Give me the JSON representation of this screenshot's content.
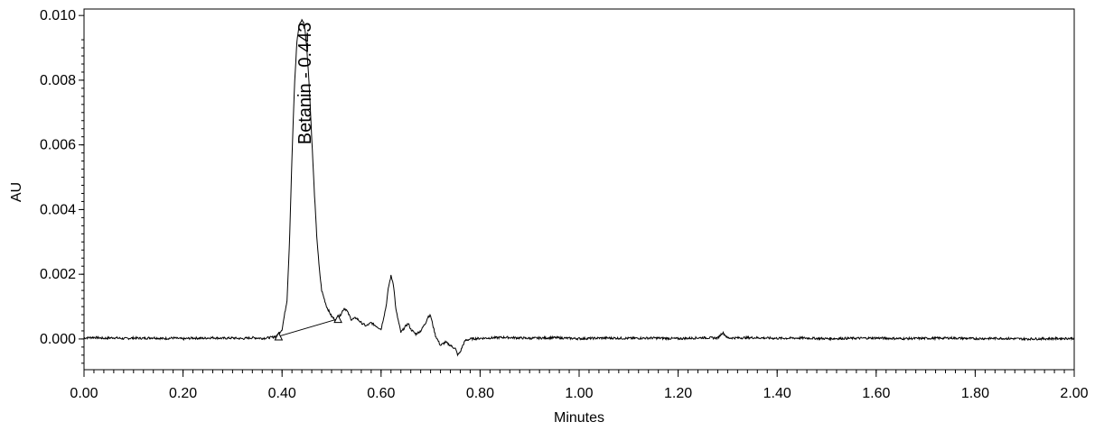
{
  "chart_data": {
    "type": "line",
    "xlabel": "Minutes",
    "ylabel": "AU",
    "xlim": [
      0.0,
      2.0
    ],
    "ylim": [
      -0.00095,
      0.0102
    ],
    "x_ticks": [
      "0.00",
      "0.20",
      "0.40",
      "0.60",
      "0.80",
      "1.00",
      "1.20",
      "1.40",
      "1.60",
      "1.80",
      "2.00"
    ],
    "y_ticks": [
      "0.000",
      "0.002",
      "0.004",
      "0.006",
      "0.008",
      "0.010"
    ],
    "grid": false,
    "line_color": "#000000",
    "series": [
      {
        "x": [
          0.0,
          0.02,
          0.04,
          0.06,
          0.08,
          0.1,
          0.12,
          0.14,
          0.16,
          0.18,
          0.2,
          0.22,
          0.24,
          0.26,
          0.28,
          0.3,
          0.32,
          0.34,
          0.36,
          0.38,
          0.39,
          0.4,
          0.41,
          0.415,
          0.42,
          0.425,
          0.43,
          0.435,
          0.44,
          0.443,
          0.446,
          0.45,
          0.455,
          0.46,
          0.465,
          0.47,
          0.475,
          0.48,
          0.49,
          0.5,
          0.51,
          0.52,
          0.525,
          0.53,
          0.54,
          0.55,
          0.56,
          0.57,
          0.58,
          0.59,
          0.6,
          0.61,
          0.615,
          0.62,
          0.625,
          0.63,
          0.64,
          0.65,
          0.655,
          0.66,
          0.67,
          0.68,
          0.69,
          0.695,
          0.7,
          0.705,
          0.71,
          0.72,
          0.73,
          0.74,
          0.75,
          0.755,
          0.76,
          0.765,
          0.77,
          0.78,
          0.8,
          0.85,
          0.9,
          0.95,
          1.0,
          1.05,
          1.1,
          1.15,
          1.2,
          1.25,
          1.28,
          1.29,
          1.3,
          1.35,
          1.4,
          1.45,
          1.5,
          1.55,
          1.6,
          1.65,
          1.7,
          1.75,
          1.8,
          1.85,
          1.9,
          1.95,
          2.0
        ],
        "y": [
          3e-05,
          5e-05,
          2e-05,
          4e-05,
          1e-05,
          3e-05,
          2e-05,
          4e-05,
          1e-05,
          3e-05,
          0.0,
          3e-05,
          2e-05,
          4e-05,
          2e-05,
          3e-05,
          1e-05,
          4e-05,
          2e-05,
          5e-05,
          0.0001,
          0.0003,
          0.0012,
          0.003,
          0.0056,
          0.0078,
          0.0092,
          0.00975,
          0.00985,
          0.0098,
          0.0096,
          0.009,
          0.0078,
          0.0062,
          0.0046,
          0.0032,
          0.0022,
          0.0015,
          0.001,
          0.0007,
          0.00055,
          0.0008,
          0.00095,
          0.0009,
          0.0006,
          0.00065,
          0.0005,
          0.0004,
          0.0005,
          0.0004,
          0.0003,
          0.001,
          0.0016,
          0.00195,
          0.0017,
          0.0009,
          0.0002,
          0.0004,
          0.00048,
          0.0003,
          0.00015,
          0.00025,
          0.0005,
          0.0007,
          0.00072,
          0.0004,
          0.0001,
          -0.0002,
          -0.0001,
          -0.0002,
          -0.0003,
          -0.0005,
          -0.0004,
          -0.0002,
          -5e-05,
          0.0,
          2e-05,
          5e-05,
          2e-05,
          4e-05,
          1e-05,
          3e-05,
          2e-05,
          3e-05,
          1e-05,
          4e-05,
          3e-05,
          0.0002,
          3e-05,
          4e-05,
          2e-05,
          3e-05,
          1e-05,
          2e-05,
          3e-05,
          1e-05,
          2e-05,
          3e-05,
          1e-05,
          2e-05,
          0.0,
          1e-05,
          2e-05
        ]
      }
    ],
    "baseline": {
      "start": [
        0.393,
        8e-05
      ],
      "end": [
        0.513,
        0.00062
      ]
    },
    "annotations": [
      {
        "text": "Betanin - 0.443",
        "x": 0.443,
        "y": 0.00985
      }
    ]
  }
}
